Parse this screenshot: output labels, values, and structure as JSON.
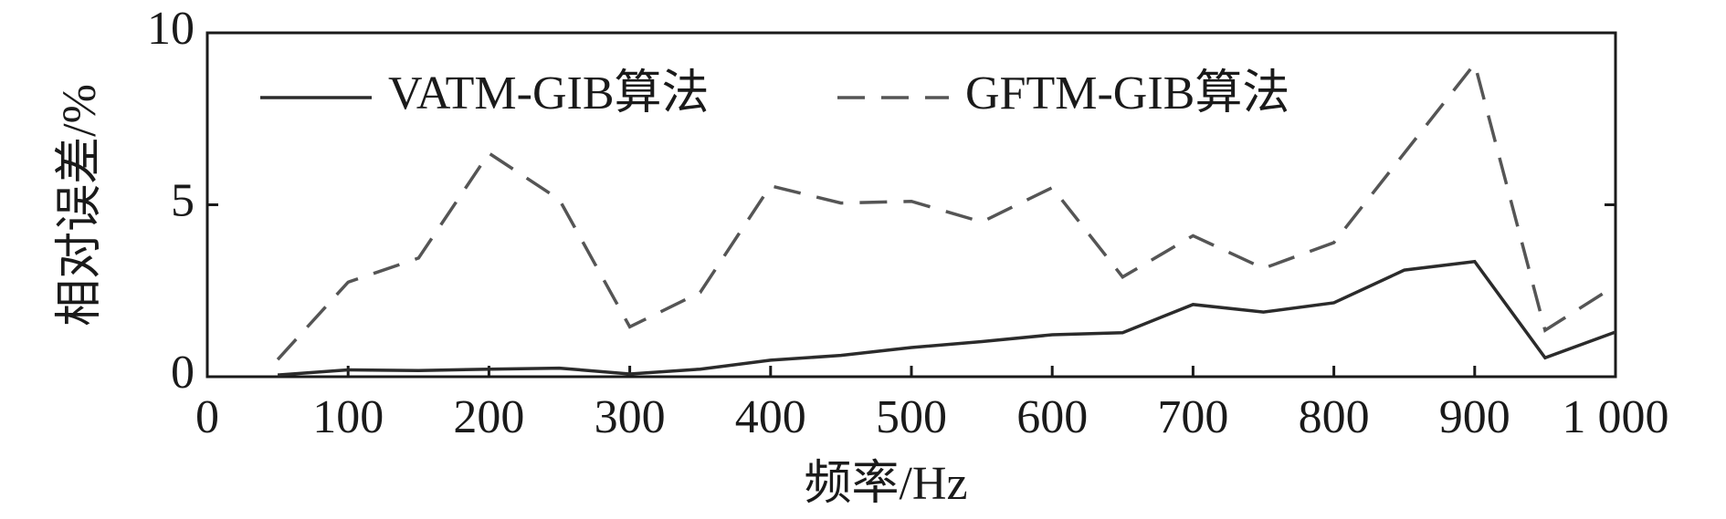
{
  "chart_data": {
    "type": "line",
    "xlabel": "频率/Hz",
    "ylabel": "相对误差/%",
    "x": [
      50,
      100,
      150,
      200,
      250,
      300,
      350,
      400,
      450,
      500,
      550,
      600,
      650,
      700,
      750,
      800,
      850,
      900,
      950,
      1000
    ],
    "series": [
      {
        "name": "VATM-GIB算法",
        "color": "#2b2b2b",
        "dash": "solid",
        "values": [
          0.05,
          0.2,
          0.18,
          0.22,
          0.25,
          0.08,
          0.22,
          0.48,
          0.62,
          0.85,
          1.02,
          1.22,
          1.28,
          2.1,
          1.88,
          2.15,
          3.1,
          3.35,
          0.55,
          1.3
        ]
      },
      {
        "name": "GFTM-GIB算法",
        "color": "#555555",
        "dash": "dashed",
        "values": [
          0.5,
          2.75,
          3.45,
          6.5,
          5.15,
          1.45,
          2.45,
          5.55,
          5.05,
          5.1,
          4.5,
          5.5,
          2.9,
          4.1,
          3.15,
          3.9,
          6.5,
          9.1,
          1.35,
          2.65
        ]
      }
    ],
    "xlim": [
      0,
      1000
    ],
    "xticks": [
      0,
      100,
      200,
      300,
      400,
      500,
      600,
      700,
      800,
      900,
      {
        "value": 1000,
        "label": "1 000"
      }
    ],
    "ylim": [
      0,
      10
    ],
    "yticks": [
      0,
      5,
      10
    ],
    "legend": "top"
  }
}
